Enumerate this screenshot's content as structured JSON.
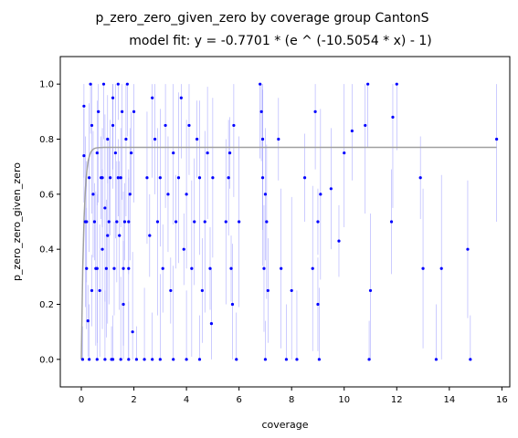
{
  "chart_data": {
    "type": "scatter",
    "title": "p_zero_zero_given_zero by coverage group CantonS",
    "subtitle": "model fit: y = -0.7701 * (e ^ (-10.5054 * x) - 1)",
    "xlabel": "coverage",
    "ylabel": "p_zero_zero_given_zero",
    "xlim": [
      -0.8,
      16.3
    ],
    "ylim": [
      -0.1,
      1.1
    ],
    "xticks": [
      0,
      2,
      4,
      6,
      8,
      10,
      12,
      14,
      16
    ],
    "yticks": [
      0.0,
      0.2,
      0.4,
      0.6,
      0.8,
      1.0
    ],
    "xtick_labels": [
      "0",
      "2",
      "4",
      "6",
      "8",
      "10",
      "12",
      "14",
      "16"
    ],
    "ytick_labels": [
      "0.0",
      "0.2",
      "0.4",
      "0.6",
      "0.8",
      "1.0"
    ],
    "grid": false,
    "legend": "none",
    "point_color": "#0000ff",
    "errorbar_color": "#8888ff",
    "fit_color": "#a0a0a0",
    "model": {
      "a": 0.7701,
      "b": 10.5054
    },
    "series": [
      {
        "points": [
          [
            0.05,
            0.0
          ],
          [
            0.1,
            0.92
          ],
          [
            0.1,
            0.74
          ],
          [
            0.15,
            0.5
          ],
          [
            0.2,
            0.33
          ],
          [
            0.25,
            0.14
          ],
          [
            0.3,
            0.66
          ],
          [
            0.35,
            1.0
          ],
          [
            0.4,
            0.85
          ],
          [
            0.45,
            0.6
          ],
          [
            0.5,
            0.5
          ],
          [
            0.55,
            0.33
          ],
          [
            0.6,
            0.75
          ],
          [
            0.65,
            0.9
          ],
          [
            0.7,
            0.25
          ],
          [
            0.75,
            0.66
          ],
          [
            0.8,
            0.4
          ],
          [
            0.85,
            1.0
          ],
          [
            0.9,
            0.55
          ],
          [
            0.95,
            0.33
          ],
          [
            1.0,
            0.8
          ],
          [
            1.05,
            0.5
          ],
          [
            1.1,
            0.66
          ],
          [
            1.15,
            0.0
          ],
          [
            1.2,
            0.95
          ],
          [
            1.25,
            0.33
          ],
          [
            1.3,
            0.75
          ],
          [
            1.35,
            0.5
          ],
          [
            1.4,
            1.0
          ],
          [
            1.45,
            0.45
          ],
          [
            1.5,
            0.66
          ],
          [
            1.55,
            0.9
          ],
          [
            1.6,
            0.2
          ],
          [
            1.65,
            0.5
          ],
          [
            1.7,
            0.8
          ],
          [
            1.75,
            1.0
          ],
          [
            1.8,
            0.33
          ],
          [
            1.85,
            0.6
          ],
          [
            1.9,
            0.75
          ],
          [
            1.95,
            0.1
          ],
          [
            0.3,
            0.0
          ],
          [
            0.6,
            0.0
          ],
          [
            0.9,
            0.0
          ],
          [
            1.2,
            0.0
          ],
          [
            1.5,
            0.0
          ],
          [
            1.8,
            0.0
          ],
          [
            2.1,
            0.0
          ],
          [
            2.4,
            0.0
          ],
          [
            2.7,
            0.0
          ],
          [
            3.0,
            0.0
          ],
          [
            0.2,
            0.5
          ],
          [
            0.4,
            0.25
          ],
          [
            0.6,
            0.33
          ],
          [
            0.8,
            0.66
          ],
          [
            1.0,
            0.45
          ],
          [
            1.2,
            0.85
          ],
          [
            1.4,
            0.66
          ],
          [
            1.6,
            0.33
          ],
          [
            1.8,
            0.5
          ],
          [
            2.0,
            0.9
          ],
          [
            2.5,
            0.66
          ],
          [
            2.6,
            0.45
          ],
          [
            2.7,
            0.95
          ],
          [
            2.8,
            0.8
          ],
          [
            2.9,
            0.5
          ],
          [
            3.0,
            0.66
          ],
          [
            3.1,
            0.33
          ],
          [
            3.2,
            0.85
          ],
          [
            3.3,
            0.6
          ],
          [
            3.4,
            0.25
          ],
          [
            3.5,
            0.75
          ],
          [
            3.6,
            0.5
          ],
          [
            3.7,
            0.66
          ],
          [
            3.8,
            0.95
          ],
          [
            3.9,
            0.4
          ],
          [
            4.0,
            0.6
          ],
          [
            4.1,
            0.85
          ],
          [
            4.2,
            0.33
          ],
          [
            4.3,
            0.5
          ],
          [
            4.4,
            0.8
          ],
          [
            4.5,
            0.66
          ],
          [
            4.6,
            0.25
          ],
          [
            4.7,
            0.5
          ],
          [
            4.8,
            0.75
          ],
          [
            4.9,
            0.33
          ],
          [
            5.0,
            0.66
          ],
          [
            4.95,
            0.13
          ],
          [
            3.5,
            0.0
          ],
          [
            4.0,
            0.0
          ],
          [
            4.5,
            0.0
          ],
          [
            5.5,
            0.5
          ],
          [
            5.6,
            0.66
          ],
          [
            5.7,
            0.33
          ],
          [
            5.8,
            0.85
          ],
          [
            5.9,
            0.0
          ],
          [
            6.0,
            0.5
          ],
          [
            5.75,
            0.2
          ],
          [
            5.65,
            0.75
          ],
          [
            6.8,
            1.0
          ],
          [
            6.85,
            0.9
          ],
          [
            6.9,
            0.66
          ],
          [
            6.95,
            0.33
          ],
          [
            7.0,
            0.0
          ],
          [
            7.05,
            0.5
          ],
          [
            7.1,
            0.25
          ],
          [
            6.9,
            0.8
          ],
          [
            7.0,
            0.6
          ],
          [
            7.5,
            0.8
          ],
          [
            7.6,
            0.33
          ],
          [
            7.8,
            0.0
          ],
          [
            8.0,
            0.25
          ],
          [
            8.2,
            0.0
          ],
          [
            8.5,
            0.66
          ],
          [
            8.8,
            0.33
          ],
          [
            8.9,
            0.9
          ],
          [
            9.0,
            0.5
          ],
          [
            9.05,
            0.0
          ],
          [
            9.0,
            0.2
          ],
          [
            9.1,
            0.6
          ],
          [
            9.5,
            0.62
          ],
          [
            9.8,
            0.43
          ],
          [
            10.0,
            0.75
          ],
          [
            10.3,
            0.83
          ],
          [
            10.8,
            0.85
          ],
          [
            10.9,
            1.0
          ],
          [
            10.95,
            0.0
          ],
          [
            11.0,
            0.25
          ],
          [
            11.8,
            0.5
          ],
          [
            11.85,
            0.88
          ],
          [
            12.0,
            1.0
          ],
          [
            12.9,
            0.66
          ],
          [
            13.0,
            0.33
          ],
          [
            13.5,
            0.0
          ],
          [
            13.7,
            0.33
          ],
          [
            14.7,
            0.4
          ],
          [
            14.8,
            0.0
          ],
          [
            15.8,
            0.8
          ]
        ]
      }
    ]
  }
}
